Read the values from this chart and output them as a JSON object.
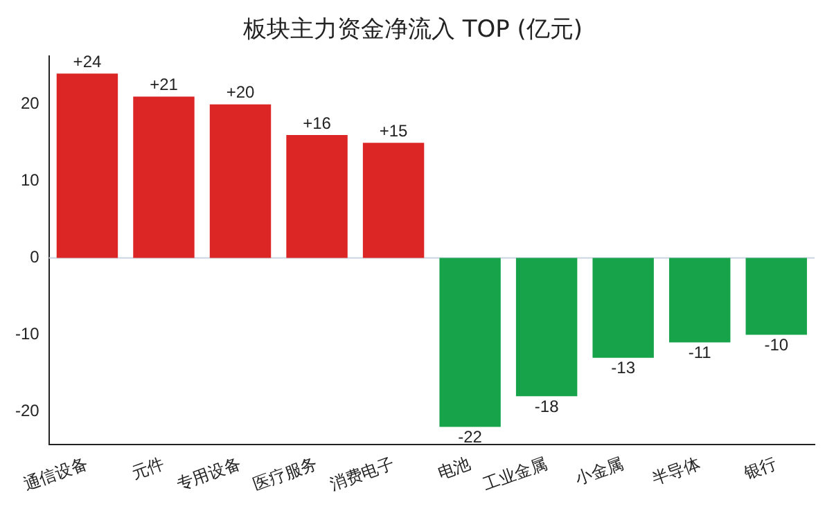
{
  "chart_data": {
    "type": "bar",
    "title": "板块主力资金净流入 TOP (亿元)",
    "categories": [
      "通信设备",
      "元件",
      "专用设备",
      "医疗服务",
      "消费电子",
      "电池",
      "工业金属",
      "小金属",
      "半导体",
      "银行"
    ],
    "values": [
      24,
      21,
      20,
      16,
      15,
      -22,
      -18,
      -13,
      -11,
      -10
    ],
    "colors": [
      "#dc2626",
      "#dc2626",
      "#dc2626",
      "#dc2626",
      "#dc2626",
      "#16a34a",
      "#16a34a",
      "#16a34a",
      "#16a34a",
      "#16a34a"
    ],
    "value_labels": [
      "+24",
      "+21",
      "+20",
      "+16",
      "+15",
      "-22",
      "-18",
      "-13",
      "-11",
      "-10"
    ],
    "ylim": [
      -24.3,
      26.3
    ],
    "yticks": [
      -20,
      -10,
      0,
      10,
      20
    ],
    "grid": false,
    "legend": false,
    "ref_lines": [
      {
        "axis": "y",
        "value": 0,
        "color": "#cbd5e1"
      }
    ]
  }
}
